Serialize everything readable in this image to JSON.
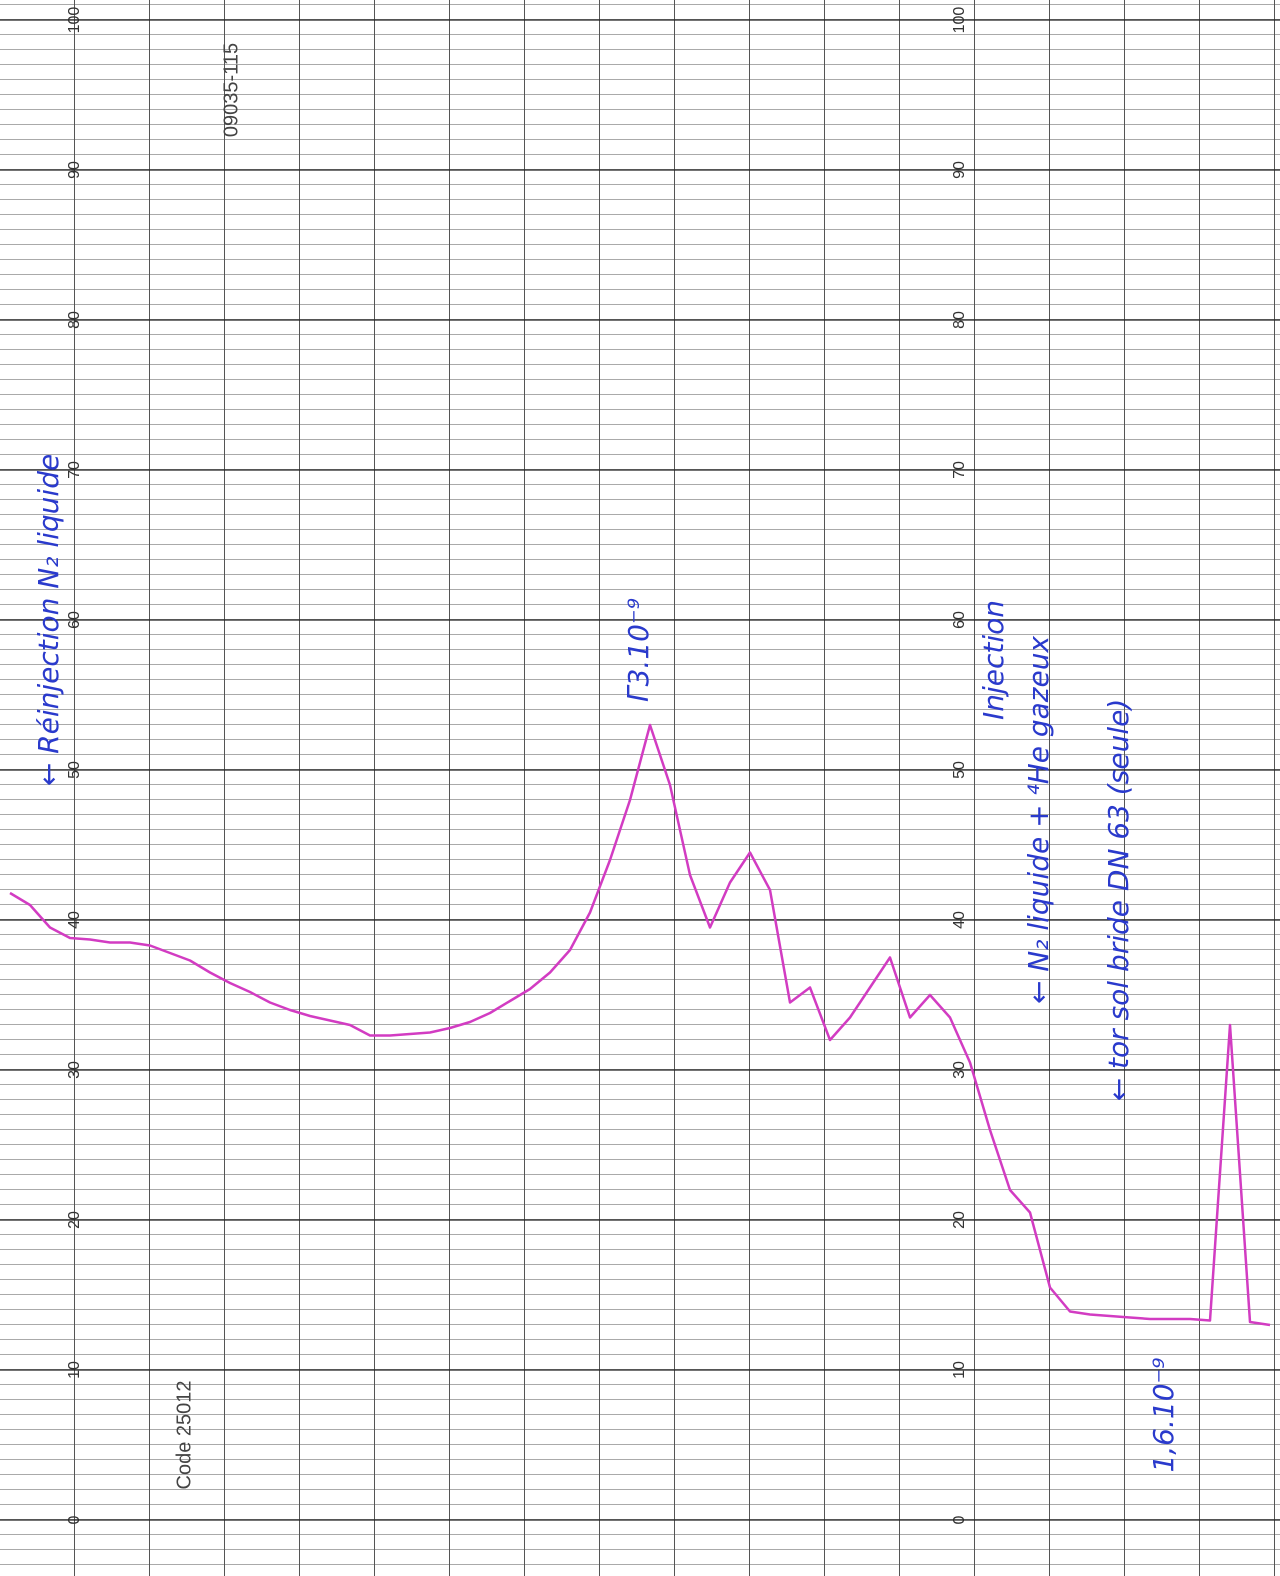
{
  "chart_data": {
    "type": "line",
    "color": "#d23cc2",
    "ylim": [
      0,
      100
    ],
    "yticks": [
      0,
      10,
      20,
      30,
      40,
      50,
      60,
      70,
      80,
      90,
      100
    ],
    "grid": true,
    "values": [
      41.8,
      41,
      39.5,
      38.8,
      38.7,
      38.5,
      38.5,
      38.3,
      37.8,
      37.3,
      36.5,
      35.8,
      35.2,
      34.5,
      34,
      33.6,
      33.3,
      33,
      32.3,
      32.3,
      32.4,
      32.5,
      32.8,
      33.2,
      33.8,
      34.6,
      35.4,
      36.5,
      38,
      40.5,
      44,
      48,
      53,
      49,
      43,
      39.5,
      42.5,
      44.5,
      42,
      34.5,
      35.5,
      32,
      33.5,
      35.5,
      37.5,
      33.5,
      35,
      33.5,
      30.5,
      26,
      22,
      20.5,
      15.5,
      13.9,
      13.7,
      13.6,
      13.5,
      13.4,
      13.4,
      13.4,
      13.3,
      33,
      13.2,
      13
    ],
    "paper_codes": [
      "09035-115",
      "Code 25012"
    ],
    "annotations": [
      "← Réinjection N₂ liquide",
      "Γ3.10⁻⁹",
      "Injection",
      "← N₂ liquide + ⁴He gazeux",
      "← tor sol bride DN 63 (seule)",
      "1,6.10⁻⁹"
    ]
  }
}
